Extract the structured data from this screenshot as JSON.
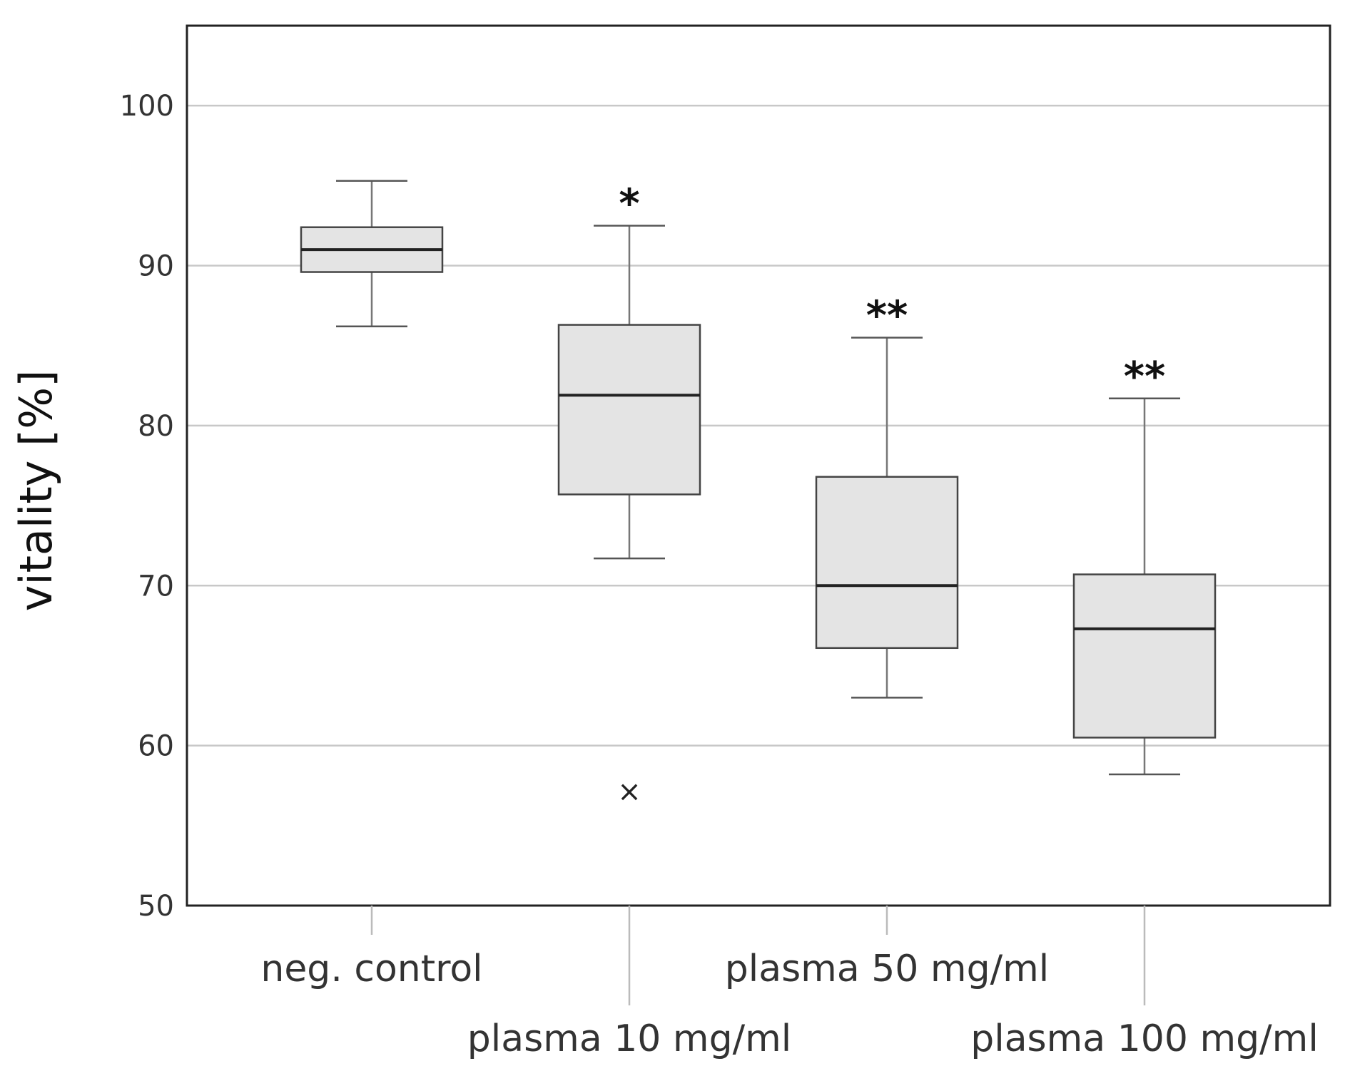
{
  "chart_data": {
    "type": "boxplot",
    "ylabel": "vitality [%]",
    "ylim": [
      50,
      105
    ],
    "yticks": [
      "50",
      "60",
      "70",
      "80",
      "90",
      "100"
    ],
    "grid": true,
    "box_fill": "#e4e4e4",
    "categories": [
      "neg. control",
      "plasma 10 mg/ml",
      "plasma 50 mg/ml",
      "plasma 100 mg/ml"
    ],
    "boxes": [
      {
        "category": "neg. control",
        "whisker_low": 86.2,
        "q1": 89.6,
        "median": 91.0,
        "q3": 92.4,
        "whisker_high": 95.3,
        "outliers": [],
        "significance": ""
      },
      {
        "category": "plasma 10 mg/ml",
        "whisker_low": 71.7,
        "q1": 75.7,
        "median": 81.9,
        "q3": 86.3,
        "whisker_high": 92.5,
        "outliers": [
          57.1
        ],
        "significance": "*"
      },
      {
        "category": "plasma 50 mg/ml",
        "whisker_low": 63.0,
        "q1": 66.1,
        "median": 70.0,
        "q3": 76.8,
        "whisker_high": 85.5,
        "outliers": [],
        "significance": "**"
      },
      {
        "category": "plasma 100 mg/ml",
        "whisker_low": 58.2,
        "q1": 60.5,
        "median": 67.3,
        "q3": 70.7,
        "whisker_high": 81.7,
        "outliers": [],
        "significance": "**"
      }
    ],
    "outlier_symbol": "×"
  }
}
